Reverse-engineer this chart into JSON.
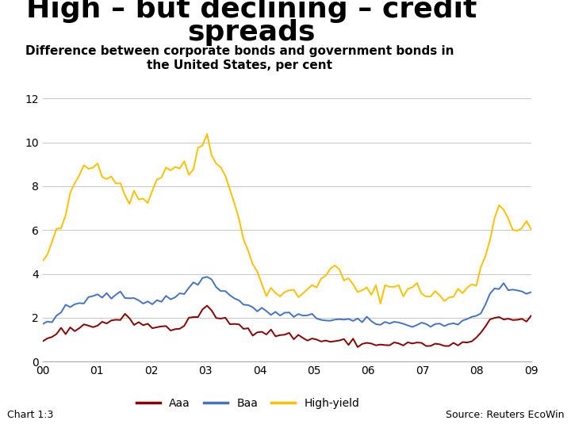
{
  "title_line1": "High – but declining – credit",
  "title_line2": "spreads",
  "subtitle_line1": "Difference between corporate bonds and government bonds in",
  "subtitle_line2": "the United States, per cent",
  "xtick_labels": [
    "00",
    "01",
    "02",
    "03",
    "04",
    "05",
    "06",
    "07",
    "08",
    "09"
  ],
  "xtick_positions": [
    2000,
    2001,
    2002,
    2003,
    2004,
    2005,
    2006,
    2007,
    2008,
    2009
  ],
  "ylim": [
    0,
    12
  ],
  "yticks": [
    0,
    2,
    4,
    6,
    8,
    10,
    12
  ],
  "xlim": [
    2000.0,
    2009.0
  ],
  "aaa_color": "#8B0000",
  "baa_color": "#4472C4",
  "hy_color": "#FFC000",
  "footer_bar_color": "#1F3864",
  "chart_label": "Chart 1:3",
  "source_label": "Source: Reuters EcoWin",
  "background_color": "#FFFFFF",
  "grid_color": "#C8C8C8",
  "title_fontsize": 26,
  "subtitle_fontsize": 11,
  "linewidth": 1.4
}
